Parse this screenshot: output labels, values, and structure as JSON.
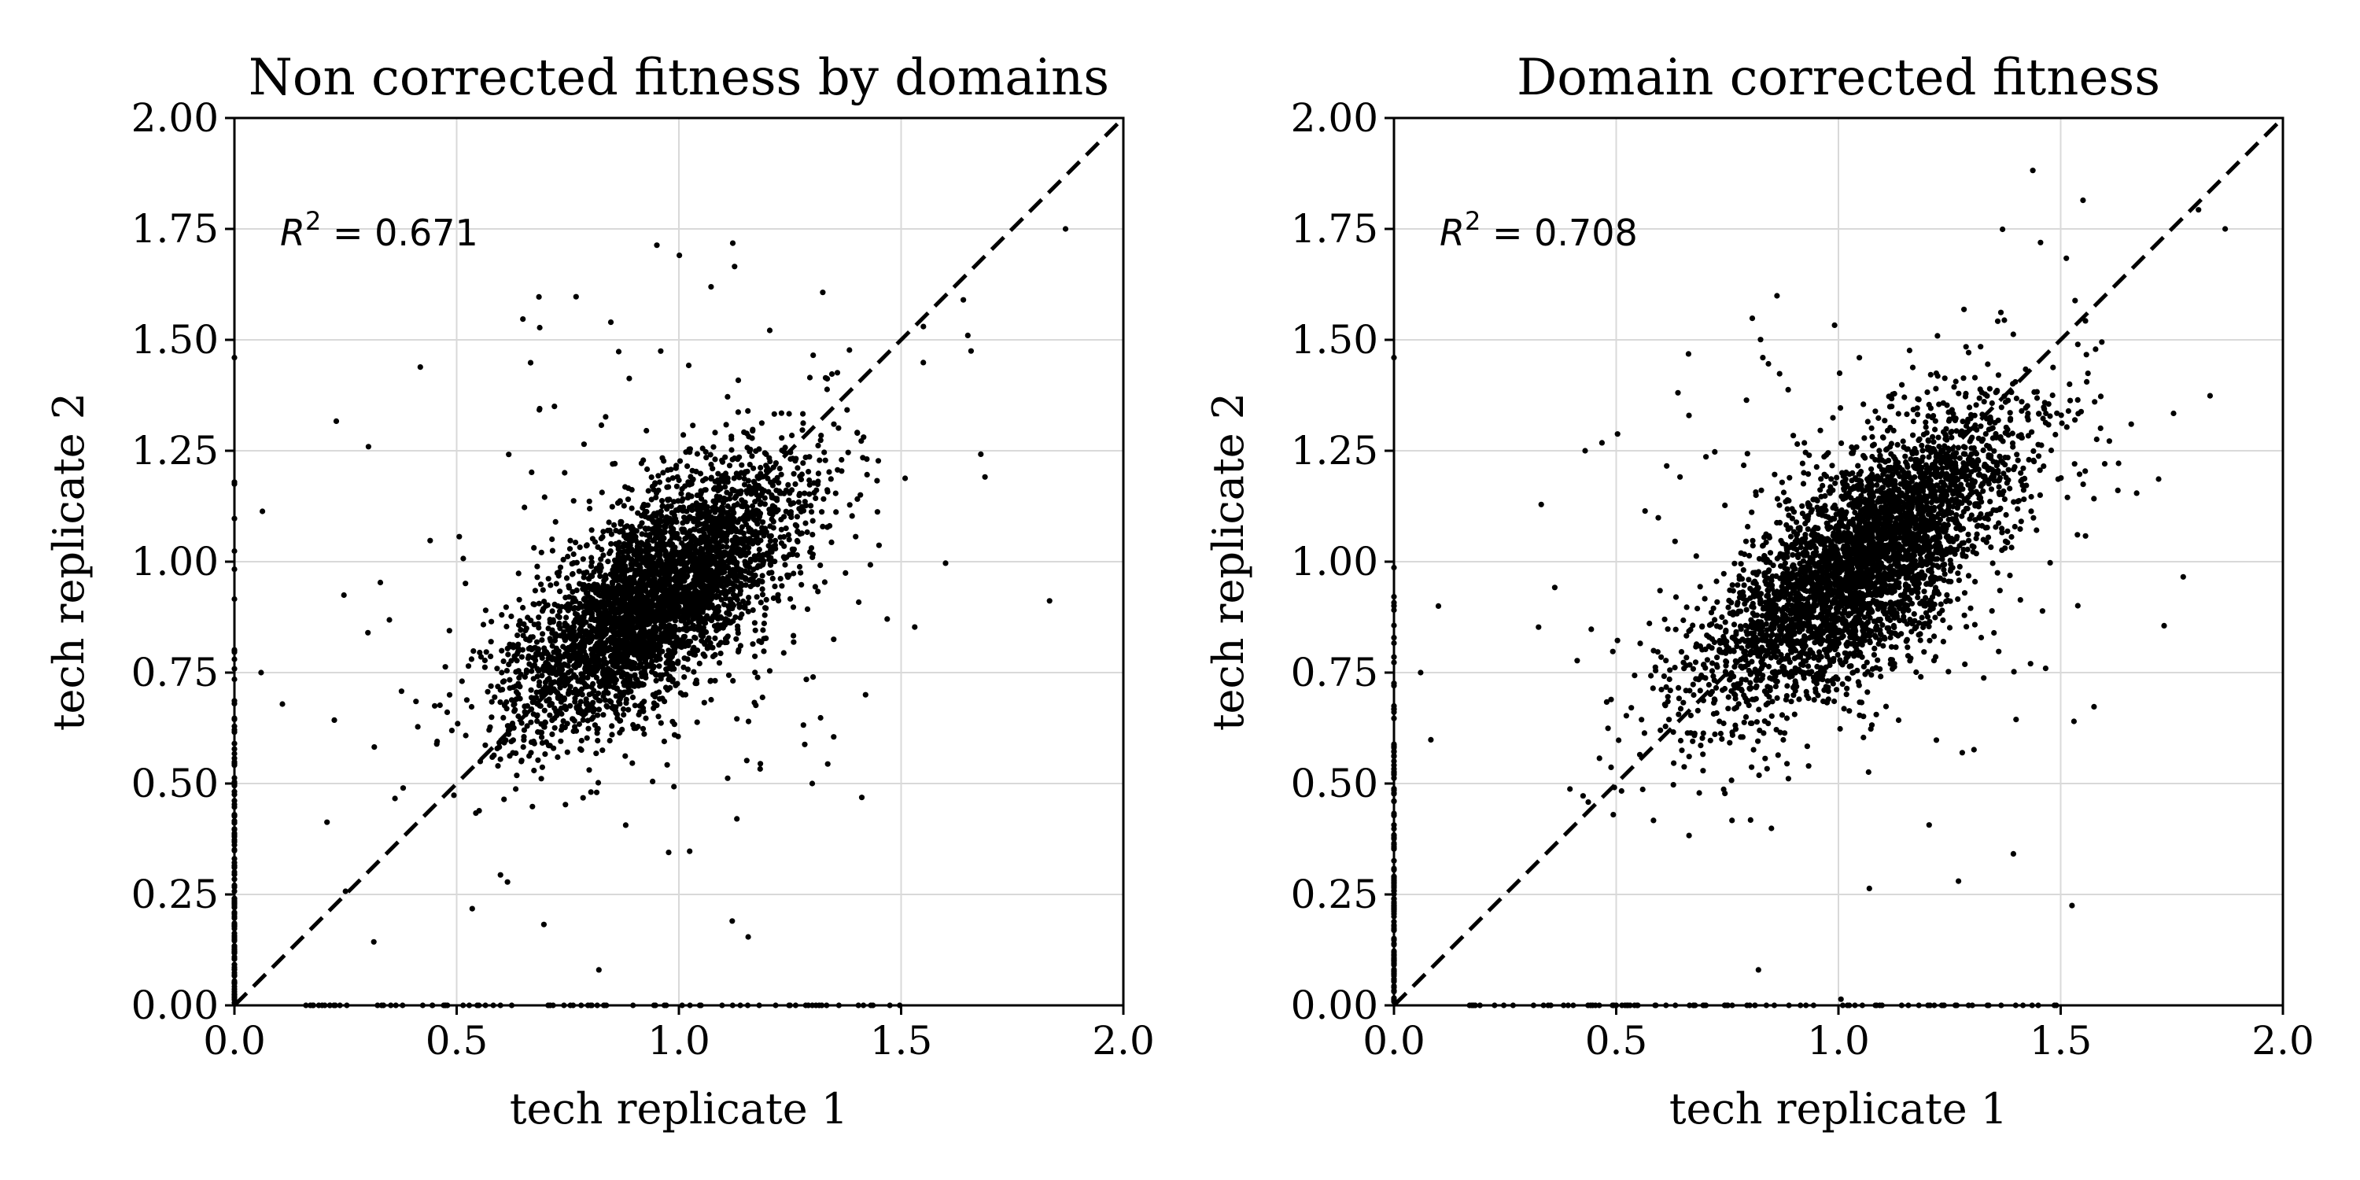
{
  "chart_data": [
    {
      "type": "scatter",
      "title": "Non corrected fitness by domains",
      "xlabel": "tech replicate 1",
      "ylabel": "tech replicate 2",
      "xlim": [
        0.0,
        2.0
      ],
      "ylim": [
        0.0,
        2.0
      ],
      "xticks": [
        "0.0",
        "0.5",
        "1.0",
        "1.5",
        "2.0"
      ],
      "yticks": [
        "0.00",
        "0.25",
        "0.50",
        "0.75",
        "1.00",
        "1.25",
        "1.50",
        "1.75",
        "2.00"
      ],
      "grid": true,
      "reference_line": {
        "style": "dashed",
        "from": [
          0,
          0
        ],
        "to": [
          2,
          2
        ]
      },
      "annotation": {
        "text_prefix": "R",
        "superscript": "2",
        "text_suffix": " = 0.671",
        "r_squared": 0.671
      },
      "point_color": "#000000",
      "cloud": {
        "n": 3800,
        "center": [
          0.95,
          0.92
        ],
        "sd_major": 0.2,
        "sd_minor": 0.085,
        "angle_deg": 41,
        "zero_x": 130,
        "zero_y": 80,
        "outliers": 260
      },
      "highlighted_points": [
        [
          1.87,
          1.75
        ],
        [
          1.65,
          1.51
        ],
        [
          1.64,
          1.59
        ],
        [
          1.55,
          1.53
        ],
        [
          1.42,
          0.7
        ],
        [
          1.3,
          0.5
        ],
        [
          0.0,
          1.46
        ],
        [
          0.72,
          1.35
        ],
        [
          1.12,
          0.19
        ],
        [
          0.82,
          0.08
        ],
        [
          0.06,
          0.75
        ]
      ]
    },
    {
      "type": "scatter",
      "title": "Domain corrected fitness",
      "xlabel": "tech replicate 1",
      "ylabel": "tech replicate 2",
      "xlim": [
        0.0,
        2.0
      ],
      "ylim": [
        0.0,
        2.0
      ],
      "xticks": [
        "0.0",
        "0.5",
        "1.0",
        "1.5",
        "2.0"
      ],
      "yticks": [
        "0.00",
        "0.25",
        "0.50",
        "0.75",
        "1.00",
        "1.25",
        "1.50",
        "1.75",
        "2.00"
      ],
      "grid": true,
      "reference_line": {
        "style": "dashed",
        "from": [
          0,
          0
        ],
        "to": [
          2,
          2
        ]
      },
      "annotation": {
        "text_prefix": "R",
        "superscript": "2",
        "text_suffix": " = 0.708",
        "r_squared": 0.708
      },
      "point_color": "#000000",
      "cloud": {
        "n": 3800,
        "center": [
          1.05,
          1.0
        ],
        "sd_major": 0.22,
        "sd_minor": 0.09,
        "angle_deg": 43,
        "zero_x": 130,
        "zero_y": 90,
        "outliers": 240
      },
      "highlighted_points": [
        [
          1.87,
          1.75
        ],
        [
          1.53,
          0.64
        ],
        [
          1.52,
          1.4
        ],
        [
          0.83,
          1.46
        ],
        [
          0.43,
          1.25
        ],
        [
          0.0,
          1.46
        ],
        [
          1.27,
          0.28
        ],
        [
          0.82,
          0.08
        ],
        [
          0.06,
          0.75
        ],
        [
          0.1,
          0.9
        ]
      ]
    }
  ]
}
